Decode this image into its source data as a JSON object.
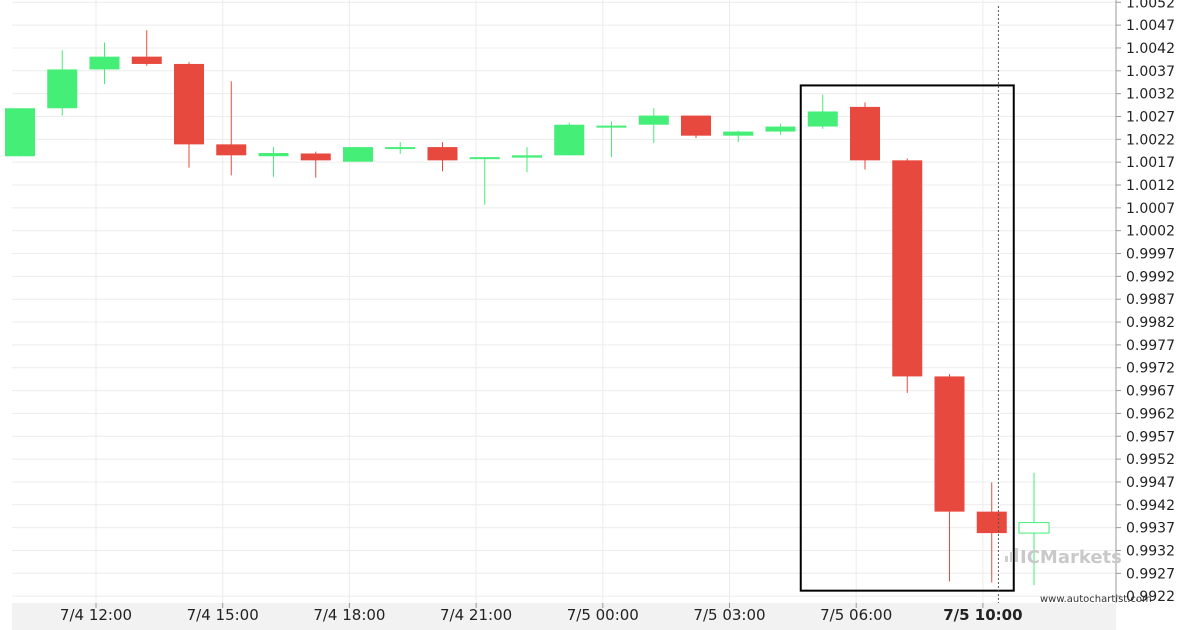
{
  "chart_data": {
    "type": "candlestick",
    "y_ticks": [
      "1.0052",
      "1.0047",
      "1.0042",
      "1.0037",
      "1.0032",
      "1.0027",
      "1.0022",
      "1.0017",
      "1.0012",
      "1.0007",
      "1.0002",
      "0.9997",
      "0.9992",
      "0.9987",
      "0.9982",
      "0.9977",
      "0.9972",
      "0.9967",
      "0.9962",
      "0.9957",
      "0.9952",
      "0.9947",
      "0.9942",
      "0.9937",
      "0.9932",
      "0.9927",
      "0.9922"
    ],
    "ylim": [
      0.99205,
      1.00525
    ],
    "x_ticks": [
      {
        "label": "7/4 12:00",
        "index": 2,
        "bold": false
      },
      {
        "label": "7/4 15:00",
        "index": 5,
        "bold": false
      },
      {
        "label": "7/4 18:00",
        "index": 8,
        "bold": false
      },
      {
        "label": "7/4 21:00",
        "index": 11,
        "bold": false
      },
      {
        "label": "7/5 00:00",
        "index": 14,
        "bold": false
      },
      {
        "label": "7/5 03:00",
        "index": 17,
        "bold": false
      },
      {
        "label": "7/5 06:00",
        "index": 20,
        "bold": false
      },
      {
        "label": "7/5 10:00",
        "index": 23,
        "bold": true
      }
    ],
    "candles": [
      {
        "open": 1.00183,
        "high": 1.00288,
        "low": 1.00183,
        "close": 1.00288
      },
      {
        "open": 1.00288,
        "high": 1.00415,
        "low": 1.00272,
        "close": 1.00373
      },
      {
        "open": 1.00373,
        "high": 1.00432,
        "low": 1.00341,
        "close": 1.00401
      },
      {
        "open": 1.00401,
        "high": 1.00459,
        "low": 1.00381,
        "close": 1.00385
      },
      {
        "open": 1.00385,
        "high": 1.00389,
        "low": 1.00158,
        "close": 1.00209
      },
      {
        "open": 1.00209,
        "high": 1.00347,
        "low": 1.00141,
        "close": 1.00185
      },
      {
        "open": 1.00183,
        "high": 1.00203,
        "low": 1.00138,
        "close": 1.0019
      },
      {
        "open": 1.00189,
        "high": 1.00193,
        "low": 1.00136,
        "close": 1.00174
      },
      {
        "open": 1.00171,
        "high": 1.00203,
        "low": 1.00171,
        "close": 1.00203
      },
      {
        "open": 1.00199,
        "high": 1.00214,
        "low": 1.00188,
        "close": 1.00203
      },
      {
        "open": 1.00203,
        "high": 1.00214,
        "low": 1.0015,
        "close": 1.00174
      },
      {
        "open": 1.00179,
        "high": 1.00181,
        "low": 1.00077,
        "close": 1.00181
      },
      {
        "open": 1.0018,
        "high": 1.00203,
        "low": 1.00148,
        "close": 1.00185
      },
      {
        "open": 1.00185,
        "high": 1.00257,
        "low": 1.00185,
        "close": 1.00252
      },
      {
        "open": 1.0025,
        "high": 1.00259,
        "low": 1.00181,
        "close": 1.0025
      },
      {
        "open": 1.00252,
        "high": 1.00288,
        "low": 1.00212,
        "close": 1.00272
      },
      {
        "open": 1.00272,
        "high": 1.00272,
        "low": 1.00223,
        "close": 1.00228
      },
      {
        "open": 1.00228,
        "high": 1.00239,
        "low": 1.00214,
        "close": 1.00237
      },
      {
        "open": 1.00237,
        "high": 1.00254,
        "low": 1.0023,
        "close": 1.00248
      },
      {
        "open": 1.00248,
        "high": 1.00318,
        "low": 1.00243,
        "close": 1.00281
      },
      {
        "open": 1.00291,
        "high": 1.00301,
        "low": 1.00154,
        "close": 1.00174
      },
      {
        "open": 1.00174,
        "high": 1.00178,
        "low": 0.99665,
        "close": 0.99701
      },
      {
        "open": 0.99701,
        "high": 0.99706,
        "low": 0.99252,
        "close": 0.99405
      },
      {
        "open": 0.99405,
        "high": 0.99469,
        "low": 0.9925,
        "close": 0.99358
      },
      {
        "open": 0.99358,
        "high": 0.9949,
        "low": 0.99244,
        "close": 0.99381
      }
    ],
    "colors": {
      "up": "#44ee77",
      "down": "#e8493f",
      "last_up_outline": "#44ee77",
      "box": "#000000"
    },
    "highlight_range": {
      "from_index": 19,
      "to_index": 23,
      "low": 0.99232,
      "high": 1.00338
    },
    "vline_index": 23.3,
    "grid": true
  },
  "watermark": {
    "brand": "ICMarkets",
    "site": "www.autochartist.com"
  }
}
